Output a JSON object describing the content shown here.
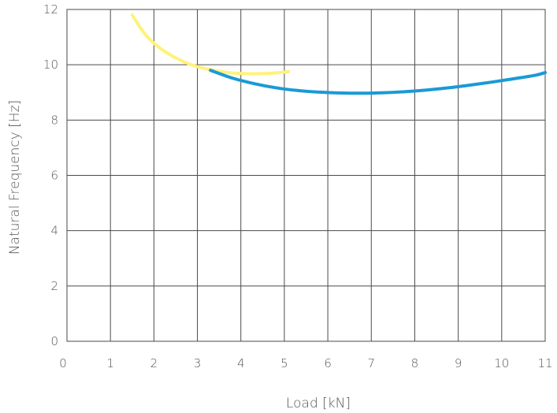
{
  "chart_data": {
    "type": "line",
    "title": "",
    "xlabel": "Load [kN]",
    "ylabel": "Natural Frequency [Hz]",
    "xlim": [
      0,
      11
    ],
    "ylim": [
      0,
      12
    ],
    "x_ticks": [
      "0",
      "1",
      "2",
      "3",
      "4",
      "5",
      "6",
      "7",
      "8",
      "9",
      "10",
      "11"
    ],
    "y_ticks": [
      "0",
      "2",
      "4",
      "6",
      "8",
      "10",
      "12"
    ],
    "grid": true,
    "legend": "none",
    "series": [
      {
        "color": "#fff27a",
        "x": [
          1.5,
          1.8,
          2.1,
          2.5,
          2.9,
          3.3,
          3.7,
          4.1,
          4.5,
          4.9,
          5.1
        ],
        "y": [
          11.8,
          11.1,
          10.65,
          10.25,
          9.98,
          9.82,
          9.72,
          9.68,
          9.68,
          9.72,
          9.75
        ]
      },
      {
        "color": "#1a9ad6",
        "x": [
          3.3,
          3.8,
          4.3,
          4.8,
          5.3,
          5.8,
          6.3,
          6.8,
          7.3,
          7.8,
          8.3,
          8.8,
          9.3,
          9.8,
          10.3,
          10.8,
          11.0
        ],
        "y": [
          9.8,
          9.52,
          9.32,
          9.17,
          9.07,
          9.01,
          8.98,
          8.97,
          8.99,
          9.03,
          9.09,
          9.17,
          9.27,
          9.38,
          9.5,
          9.63,
          9.72
        ]
      }
    ]
  }
}
